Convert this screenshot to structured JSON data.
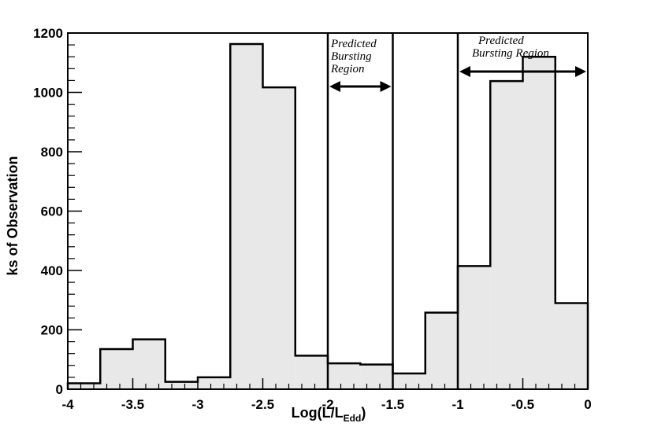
{
  "chart_data": {
    "type": "bar",
    "subtype": "histogram",
    "xlabel": {
      "base": "Log(L/L",
      "sub": "Edd",
      "close": ")"
    },
    "ylabel": "ks of Observation",
    "xlim": [
      -4,
      0
    ],
    "ylim": [
      0,
      1200
    ],
    "x_ticks": [
      "-4",
      "-3.5",
      "-3",
      "-2.5",
      "-2",
      "-1.5",
      "-1",
      "-0.5",
      "0"
    ],
    "y_ticks": [
      "0",
      "200",
      "400",
      "600",
      "800",
      "1000",
      "1200"
    ],
    "bin_edges": [
      -4.0,
      -3.75,
      -3.5,
      -3.25,
      -3.0,
      -2.75,
      -2.5,
      -2.25,
      -2.0,
      -1.75,
      -1.5,
      -1.25,
      -1.0,
      -0.75,
      -0.5,
      -0.25,
      0.0
    ],
    "values": [
      20,
      135,
      168,
      25,
      40,
      1163,
      1017,
      113,
      87,
      83,
      53,
      258,
      415,
      1038,
      1120,
      290
    ],
    "fill_color": "#e8e8e8",
    "line_color": "#000000",
    "regions": [
      {
        "label_lines": [
          "Predicted",
          "Bursting",
          "Region"
        ],
        "from": -2.0,
        "to": -1.5
      },
      {
        "label_lines": [
          "Predicted",
          "Bursting Region"
        ],
        "from": -1.0,
        "to": 0.0
      }
    ],
    "grid": false,
    "legend": "none"
  }
}
